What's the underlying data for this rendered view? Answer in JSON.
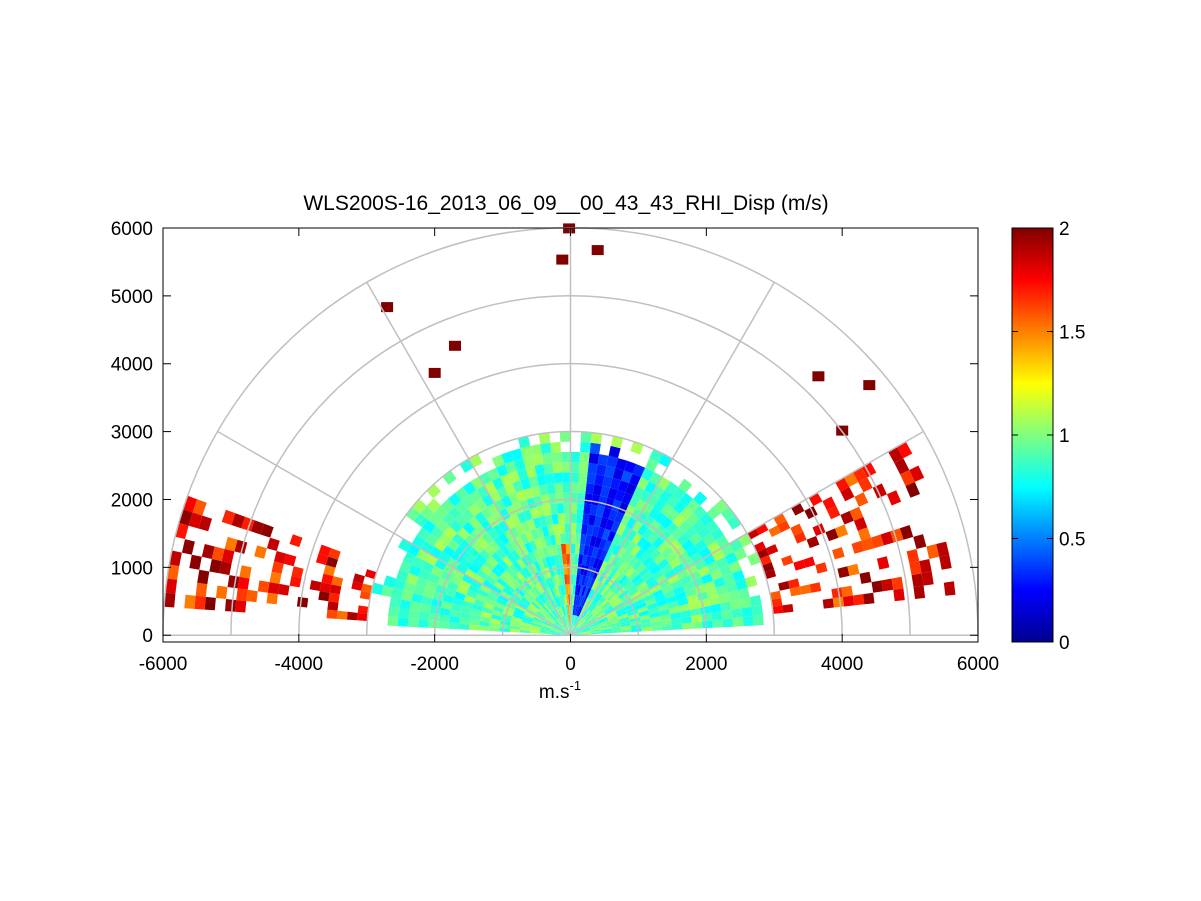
{
  "chart_data": {
    "type": "heatmap",
    "subtype": "polar-sector RHI scan",
    "title": "WLS200S-16_2013_06_09__00_43_43_RHI_Disp (m/s)",
    "xlabel": "m.s",
    "xlabel_superscript": "-1",
    "ylabel": "",
    "xlim": [
      -6000,
      6000
    ],
    "ylim": [
      -100,
      6000
    ],
    "x_ticks": [
      -6000,
      -4000,
      -2000,
      0,
      2000,
      4000,
      6000
    ],
    "x_tick_labels": [
      "-6000",
      "-4000",
      "-2000",
      "0",
      "2000",
      "4000",
      "6000"
    ],
    "y_ticks": [
      0,
      1000,
      2000,
      3000,
      4000,
      5000,
      6000
    ],
    "y_tick_labels": [
      "0",
      "1000",
      "2000",
      "3000",
      "4000",
      "5000",
      "6000"
    ],
    "polar_grid": {
      "range_rings": [
        1000,
        2000,
        3000,
        4000,
        5000,
        6000
      ],
      "spokes_deg": [
        0,
        30,
        60,
        90,
        120,
        150,
        180
      ]
    },
    "colorbar": {
      "colormap": "jet",
      "range": [
        0,
        2
      ],
      "ticks": [
        0,
        0.5,
        1,
        1.5,
        2
      ],
      "tick_labels": [
        "0",
        "0.5",
        "1",
        "1.5",
        "2"
      ]
    },
    "scan": {
      "elevation_min_deg": 3,
      "elevation_max_deg": 177,
      "data_extent_m": 3000,
      "background_value": 0.92
    },
    "features": [
      {
        "name": "low-dispersion region",
        "az_from_deg": 65,
        "az_to_deg": 84,
        "r_from_m": 300,
        "r_to_m": 2850,
        "value": 0.3
      },
      {
        "name": "near-vertical high-dispersion streak",
        "az_from_deg": 91,
        "az_to_deg": 97,
        "r_from_m": 100,
        "r_to_m": 1300,
        "value": 1.5
      },
      {
        "name": "left low-elevation strong returns",
        "az_from_deg": 160,
        "az_to_deg": 176,
        "r_from_m": 3000,
        "r_to_m": 5900,
        "value": 2.0
      },
      {
        "name": "right low-elevation strong returns",
        "az_from_deg": 6,
        "az_to_deg": 30,
        "r_from_m": 3000,
        "r_to_m": 5600,
        "value": 2.0
      },
      {
        "name": "isolated returns aloft",
        "points": [
          [
            -120,
            5520
          ],
          [
            400,
            5660
          ],
          [
            -2700,
            4820
          ],
          [
            -1700,
            4250
          ],
          [
            -2000,
            3850
          ],
          [
            4400,
            3670
          ],
          [
            3650,
            3800
          ],
          [
            4000,
            3000
          ],
          [
            -20,
            5980
          ]
        ],
        "value": 2.0
      }
    ]
  }
}
